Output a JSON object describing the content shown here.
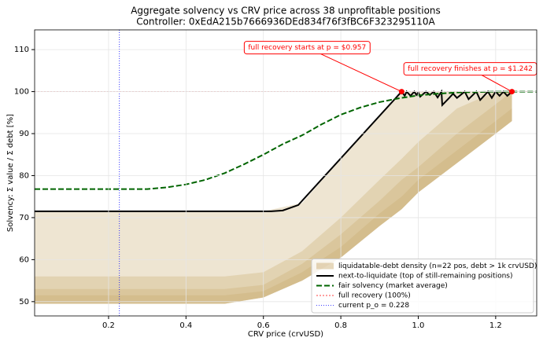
{
  "chart_data": {
    "type": "line",
    "title": "Aggregate solvency vs CRV price across 38 unprofitable positions",
    "subtitle": "Controller: 0xEdA215b7666936DEd834f76f3fBC6F323295110A",
    "x_label": "CRV price (crvUSD)",
    "y_label": "Solvency: Σ value / Σ debt   [%]",
    "xlim": [
      0.009,
      1.306
    ],
    "ylim": [
      46.6,
      114.7
    ],
    "xticks": [
      0.2,
      0.4,
      0.6,
      0.8,
      {
        "value": 1,
        "label": "1.0"
      },
      1.2
    ],
    "yticks": [
      50,
      60,
      70,
      80,
      90,
      100,
      110
    ],
    "grid": true,
    "legend": "lower right",
    "density": {
      "name": "liquidatable-debt density (n=22 pos, debt > 1k crvUSD)",
      "color": "#c8a96b",
      "x": [
        0.009,
        0.5,
        0.6,
        0.7,
        0.8,
        0.9,
        0.957,
        1.0,
        1.1,
        1.2,
        1.242
      ],
      "bands": [
        {
          "upper": [
            71.5,
            71.5,
            71.5,
            73.5,
            84,
            94,
            100,
            100,
            100,
            100,
            100
          ],
          "lower": [
            49.5,
            49.5,
            51,
            55,
            60.5,
            68,
            72,
            76,
            83,
            90,
            93
          ]
        },
        {
          "upper": [
            56,
            56,
            57,
            62,
            70,
            79,
            84,
            88,
            96,
            100,
            100
          ],
          "lower": [
            49.5,
            49.5,
            51,
            55,
            60.5,
            68,
            72,
            76,
            83,
            90,
            93
          ]
        },
        {
          "upper": [
            53,
            53,
            54,
            59,
            66,
            74,
            79,
            82,
            90,
            97,
            100
          ],
          "lower": [
            49.5,
            49.5,
            51,
            55,
            60.5,
            68,
            72,
            76,
            83,
            90,
            93
          ]
        },
        {
          "upper": [
            51.5,
            51.5,
            52.5,
            57,
            63,
            71,
            75,
            79,
            86,
            93,
            96
          ],
          "lower": [
            49.5,
            49.5,
            51,
            55,
            60.5,
            68,
            72,
            76,
            83,
            90,
            93
          ]
        }
      ]
    },
    "series": [
      {
        "name": "next-to-liquidate (top of still-remaining positions)",
        "color": "#000000",
        "linestyle": "solid",
        "x": [
          0.009,
          0.62,
          0.65,
          0.69,
          0.957,
          0.965,
          0.97,
          0.98,
          0.99,
          0.995,
          1.0,
          1.005,
          1.02,
          1.03,
          1.04,
          1.05,
          1.06,
          1.062,
          1.08,
          1.09,
          1.1,
          1.12,
          1.13,
          1.15,
          1.16,
          1.18,
          1.19,
          1.2,
          1.21,
          1.22,
          1.23,
          1.242
        ],
        "values": [
          71.5,
          71.5,
          71.7,
          73,
          100,
          99,
          100,
          99,
          100,
          99.2,
          99.8,
          98.8,
          100,
          99.2,
          100,
          98.6,
          100,
          96.8,
          98.5,
          99.5,
          98.5,
          100,
          98.2,
          100,
          98,
          100,
          98.5,
          100,
          99,
          100,
          99,
          100
        ]
      },
      {
        "name": "fair solvency (market average)",
        "color": "#006400",
        "linestyle": "dashed",
        "x": [
          0.009,
          0.3,
          0.35,
          0.4,
          0.45,
          0.5,
          0.55,
          0.6,
          0.65,
          0.7,
          0.75,
          0.8,
          0.85,
          0.9,
          0.95,
          1.0,
          1.05,
          1.1,
          1.2,
          1.306
        ],
        "values": [
          76.8,
          76.8,
          77.2,
          77.9,
          79,
          80.6,
          82.7,
          85,
          87.5,
          89.6,
          92.2,
          94.5,
          96.2,
          97.5,
          98.4,
          99.1,
          99.5,
          99.8,
          100,
          100
        ]
      }
    ],
    "hline": {
      "name": "full recovery (100%)",
      "value": 100,
      "color": "#ff0000"
    },
    "vline": {
      "name": "current p_o = 0.228",
      "value": 0.228,
      "color": "#0000ff"
    },
    "annotations": [
      {
        "text": "full recovery starts at p = $0.957",
        "x": 0.957,
        "y": 100,
        "color": "#ff0000"
      },
      {
        "text": "full recovery finishes at p = $1.242",
        "x": 1.242,
        "y": 100,
        "color": "#ff0000"
      }
    ]
  }
}
